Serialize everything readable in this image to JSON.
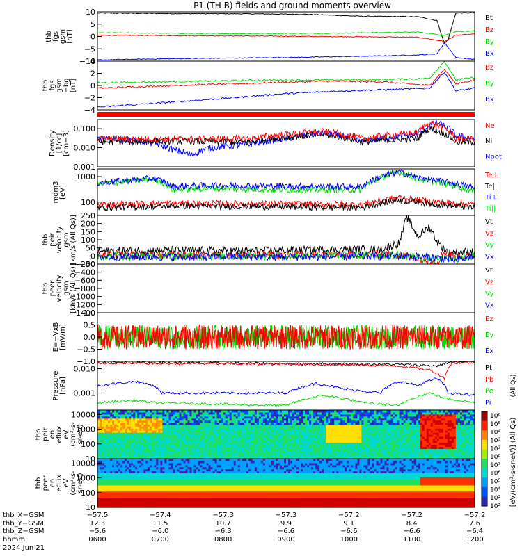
{
  "title": "P1 (TH-B) fields and ground moments overview",
  "colors": {
    "black": "#000000",
    "red": "#ff0000",
    "green": "#00dd00",
    "blue": "#0000ff"
  },
  "chart_data": [
    {
      "type": "line",
      "id": "fgs_mag",
      "ylabel": [
        "thb",
        "fgs",
        "gsm",
        "[nT]"
      ],
      "ylim": [
        -10,
        10
      ],
      "yticks": [
        "10",
        "5",
        "0",
        "−5",
        "−10"
      ],
      "legend": [
        "Bt",
        "Bz",
        "By",
        "Bx"
      ],
      "series": [
        {
          "name": "Bt",
          "color": "#000000",
          "x": [
            0,
            0.2,
            0.4,
            0.55,
            0.7,
            0.85,
            0.9,
            0.92,
            0.93,
            0.95,
            1.0
          ],
          "y": [
            9.5,
            9.3,
            9.2,
            9.0,
            8.2,
            8.0,
            6.5,
            -3.0,
            -1.0,
            9.5,
            9.6
          ]
        },
        {
          "name": "Bz",
          "color": "#ff0000",
          "x": [
            0,
            0.3,
            0.6,
            0.85,
            0.92,
            0.95,
            1.0
          ],
          "y": [
            0.5,
            0.3,
            0.0,
            -0.3,
            -2.0,
            0.5,
            1.0
          ]
        },
        {
          "name": "By",
          "color": "#00dd00",
          "x": [
            0,
            0.3,
            0.6,
            0.85,
            0.92,
            0.95,
            1.0
          ],
          "y": [
            1.5,
            1.2,
            1.3,
            1.8,
            0.5,
            2.0,
            2.2
          ]
        },
        {
          "name": "Bx",
          "color": "#0000ff",
          "x": [
            0,
            0.2,
            0.5,
            0.7,
            0.85,
            0.9,
            0.92,
            0.95,
            1.0
          ],
          "y": [
            -9.5,
            -9.0,
            -8.5,
            -8.0,
            -7.5,
            -7.0,
            -2.5,
            -8.5,
            -9.3
          ]
        }
      ]
    },
    {
      "type": "line",
      "id": "fgs_dsl",
      "ylabel": [
        "thb",
        "fgs",
        "gsm",
        "−bg",
        "[nT]"
      ],
      "ylim": [
        -5,
        4
      ],
      "yticks": [
        "4",
        "2",
        "0",
        "−2",
        "−4"
      ],
      "legend": [
        "Bz",
        "By",
        "Bx"
      ],
      "series": [
        {
          "name": "Bz",
          "color": "#ff0000",
          "x": [
            0,
            0.2,
            0.45,
            0.6,
            0.75,
            0.88,
            0.92,
            0.95,
            1.0
          ],
          "y": [
            -1.0,
            -0.5,
            0.0,
            0.3,
            0.2,
            -0.5,
            2.5,
            -0.2,
            0.5
          ]
        },
        {
          "name": "By",
          "color": "#00dd00",
          "x": [
            0,
            0.2,
            0.45,
            0.6,
            0.75,
            0.88,
            0.92,
            0.95,
            1.0
          ],
          "y": [
            0.0,
            0.2,
            0.5,
            0.5,
            0.6,
            0.8,
            4.0,
            0.5,
            1.0
          ]
        },
        {
          "name": "Bx",
          "color": "#0000ff",
          "x": [
            0,
            0.15,
            0.35,
            0.5,
            0.65,
            0.8,
            0.88,
            0.92,
            0.95,
            1.0
          ],
          "y": [
            -4.5,
            -3.8,
            -2.8,
            -2.0,
            -1.5,
            -1.2,
            -1.0,
            2.0,
            -1.5,
            -1.0
          ]
        }
      ]
    },
    {
      "type": "line",
      "id": "density",
      "ylabel": [
        "Density",
        "[1/cc]",
        "[cm−3]"
      ],
      "scale": "log",
      "ylim": [
        0.001,
        0.3
      ],
      "yticks": [
        "0.100",
        "0.010",
        "0.001"
      ],
      "legend": [
        "Ne",
        "Ni",
        "Npot"
      ],
      "series": [
        {
          "name": "Npot",
          "color": "#0000ff",
          "x": [
            0,
            0.1,
            0.2,
            0.25,
            0.3,
            0.4,
            0.5,
            0.6,
            0.7,
            0.85,
            0.9,
            0.95,
            1.0
          ],
          "y": [
            0.03,
            0.025,
            0.008,
            0.004,
            0.01,
            0.015,
            0.03,
            0.06,
            0.02,
            0.05,
            0.2,
            0.04,
            0.03
          ]
        },
        {
          "name": "Ni",
          "color": "#000000",
          "x": [
            0,
            0.2,
            0.4,
            0.6,
            0.7,
            0.85,
            0.88,
            0.95,
            1.0
          ],
          "y": [
            0.02,
            0.022,
            0.02,
            0.05,
            0.02,
            0.03,
            0.1,
            0.02,
            0.02
          ]
        },
        {
          "name": "Ne",
          "color": "#ff0000",
          "x": [
            0,
            0.2,
            0.4,
            0.6,
            0.7,
            0.85,
            0.88,
            0.95,
            1.0
          ],
          "y": [
            0.03,
            0.028,
            0.03,
            0.07,
            0.03,
            0.06,
            0.2,
            0.03,
            0.03
          ]
        }
      ]
    },
    {
      "type": "line",
      "id": "temperature",
      "ylabel": [
        "mom3",
        "[eV]"
      ],
      "scale": "log",
      "ylim": [
        30,
        2000
      ],
      "yticks": [
        "1000",
        "100"
      ],
      "legend": [
        "Te⊥",
        "Te||",
        "Ti⊥",
        "Ti||"
      ],
      "series": [
        {
          "name": "Ti||",
          "color": "#00dd00",
          "x": [
            0,
            0.15,
            0.2,
            0.3,
            0.5,
            0.7,
            0.8,
            0.85,
            0.9,
            1.0
          ],
          "y": [
            500,
            800,
            300,
            350,
            300,
            300,
            1500,
            800,
            600,
            250
          ]
        },
        {
          "name": "Ti⊥",
          "color": "#0000ff",
          "x": [
            0,
            0.15,
            0.2,
            0.3,
            0.5,
            0.7,
            0.8,
            0.85,
            0.9,
            1.0
          ],
          "y": [
            550,
            850,
            400,
            450,
            420,
            400,
            1500,
            900,
            700,
            350
          ]
        },
        {
          "name": "Te⊥",
          "color": "#ff0000",
          "x": [
            0,
            0.2,
            0.5,
            0.7,
            0.8,
            0.85,
            0.9,
            1.0
          ],
          "y": [
            80,
            90,
            85,
            80,
            150,
            120,
            100,
            80
          ]
        },
        {
          "name": "Te||",
          "color": "#000000",
          "x": [
            0,
            0.2,
            0.5,
            0.7,
            0.8,
            0.85,
            0.9,
            1.0
          ],
          "y": [
            60,
            70,
            65,
            60,
            120,
            100,
            80,
            60
          ]
        }
      ]
    },
    {
      "type": "line",
      "id": "velocity_gsm",
      "ylabel": [
        "thb",
        "peir",
        "velocity",
        "gsm",
        "[km/s (All Qs)]"
      ],
      "ylim": [
        -50,
        250
      ],
      "yticks": [
        "250",
        "200",
        "150",
        "100",
        "50",
        "0",
        "−50"
      ],
      "legend": [
        "Vt",
        "Vz",
        "Vy",
        "Vx"
      ],
      "series": [
        {
          "name": "Vt",
          "color": "#000000",
          "x": [
            0,
            0.2,
            0.4,
            0.6,
            0.75,
            0.8,
            0.82,
            0.85,
            0.88,
            0.9,
            0.93,
            1.0
          ],
          "y": [
            30,
            35,
            30,
            40,
            40,
            80,
            240,
            120,
            180,
            90,
            20,
            30
          ]
        },
        {
          "name": "Vz",
          "color": "#ff0000",
          "x": [
            0,
            0.5,
            0.8,
            0.9,
            0.92,
            0.95,
            1.0
          ],
          "y": [
            5,
            5,
            10,
            -40,
            30,
            -10,
            5
          ]
        },
        {
          "name": "Vy",
          "color": "#00dd00",
          "x": [
            0,
            0.5,
            0.8,
            0.9,
            0.95,
            1.0
          ],
          "y": [
            0,
            0,
            5,
            -20,
            -20,
            0
          ]
        },
        {
          "name": "Vx",
          "color": "#0000ff",
          "x": [
            0,
            0.5,
            0.8,
            0.9,
            0.95,
            1.0
          ],
          "y": [
            -5,
            -5,
            0,
            -10,
            -30,
            0
          ]
        }
      ]
    },
    {
      "type": "line",
      "id": "velocity_peer",
      "ylabel": [
        "thb",
        "peer",
        "velocity",
        "gsm",
        "[km/s (All Qs)]"
      ],
      "ylim": [
        -1400,
        -200
      ],
      "yticks": [
        "−200",
        "−400",
        "−600",
        "−800",
        "−1000",
        "−1200",
        "−1400"
      ],
      "legend": [
        "Vt",
        "Vz",
        "Vy",
        "Vx"
      ],
      "series": []
    },
    {
      "type": "line",
      "id": "efield",
      "ylabel": [
        "E=−VxB",
        "[mV/m]"
      ],
      "ylim": [
        -1,
        1
      ],
      "yticks": [
        "1.0",
        "0.5",
        "0.0",
        "−0.5",
        "−1.0"
      ],
      "legend": [
        "Ez",
        "Ey",
        "Ex"
      ],
      "series": [
        {
          "name": "Ey",
          "color": "#00dd00",
          "x": [
            0,
            0.5,
            1.0
          ],
          "y": [
            0,
            0,
            0
          ]
        },
        {
          "name": "Ez",
          "color": "#ff0000",
          "x": [
            0,
            0.5,
            1.0
          ],
          "y": [
            0,
            0,
            0
          ]
        }
      ]
    },
    {
      "type": "line",
      "id": "pressure",
      "ylabel": [
        "Pressure",
        "[nPa]"
      ],
      "scale": "log",
      "ylim": [
        0.0002,
        0.02
      ],
      "yticks": [
        "0.010",
        "0.001"
      ],
      "legend": [
        "Pt",
        "Pb",
        "Pe",
        "Pi"
      ],
      "side_label": "(All Qs)",
      "series": [
        {
          "name": "Pt",
          "color": "#000000",
          "x": [
            0,
            0.3,
            0.6,
            0.8,
            0.9,
            0.93,
            1.0
          ],
          "y": [
            0.018,
            0.017,
            0.016,
            0.015,
            0.013,
            0.018,
            0.019
          ]
        },
        {
          "name": "Pb",
          "color": "#ff0000",
          "x": [
            0,
            0.3,
            0.6,
            0.8,
            0.88,
            0.92,
            0.94,
            1.0
          ],
          "y": [
            0.017,
            0.016,
            0.015,
            0.013,
            0.009,
            0.004,
            0.017,
            0.018
          ]
        },
        {
          "name": "Pi",
          "color": "#0000ff",
          "x": [
            0,
            0.1,
            0.15,
            0.17,
            0.5,
            0.58,
            0.65,
            0.75,
            0.8,
            0.85,
            0.9,
            0.93,
            1.0
          ],
          "y": [
            0.002,
            0.003,
            0.002,
            0.001,
            0.001,
            0.0025,
            0.0015,
            0.001,
            0.003,
            0.002,
            0.004,
            0.001,
            0.0008
          ]
        },
        {
          "name": "Pe",
          "color": "#00dd00",
          "x": [
            0,
            0.1,
            0.15,
            0.5,
            0.6,
            0.7,
            0.8,
            0.88,
            0.92,
            1.0
          ],
          "y": [
            0.0004,
            0.0005,
            0.0004,
            0.0003,
            0.0008,
            0.0004,
            0.0003,
            0.001,
            0.0006,
            0.0004
          ]
        }
      ]
    },
    {
      "type": "heatmap",
      "id": "peir_en",
      "ylabel": [
        "thb",
        "peir",
        "en",
        "eflux",
        "eV",
        "(cm²-s-",
        "sr-eV)"
      ],
      "scale": "log",
      "ylim": [
        10,
        20000
      ],
      "yticks": [
        "10000",
        "1000",
        "100",
        "10"
      ]
    },
    {
      "type": "heatmap",
      "id": "peer_en",
      "ylabel": [
        "thb",
        "peer",
        "en",
        "eflux",
        "eV",
        "(cm²-s-",
        "sr-eV)"
      ],
      "scale": "log",
      "ylim": [
        10,
        20000
      ],
      "yticks": [
        "10000",
        "1000",
        "100",
        "10"
      ],
      "colorbar": {
        "ticks": [
          "10⁶",
          "10⁵",
          "10⁴",
          "10³",
          "10²",
          "10⁸",
          "10⁷",
          "10⁶",
          "10⁵",
          "10⁴",
          "10³",
          "10²"
        ],
        "label": "[eV/(cm²-s-sr-eV)] (All Qs)"
      }
    }
  ],
  "xaxis": {
    "rows": [
      {
        "label": "thb_X−GSM",
        "values": [
          "−57.5",
          "−57.4",
          "−57.3",
          "−57.3",
          "−57.2",
          "−57.2",
          "−57.2"
        ]
      },
      {
        "label": "thb_Y−GSM",
        "values": [
          "12.3",
          "11.5",
          "10.7",
          "9.9",
          "9.1",
          "8.4",
          "7.6"
        ]
      },
      {
        "label": "thb_Z−GSM",
        "values": [
          "−5.6",
          "−6.0",
          "−6.3",
          "−6.6",
          "−6.6",
          "−6.6",
          "−6.4"
        ]
      },
      {
        "label": "hhmm",
        "values": [
          "0600",
          "0700",
          "0800",
          "0900",
          "1000",
          "1100",
          "1200"
        ]
      }
    ],
    "date": "2024 Jun 21"
  }
}
